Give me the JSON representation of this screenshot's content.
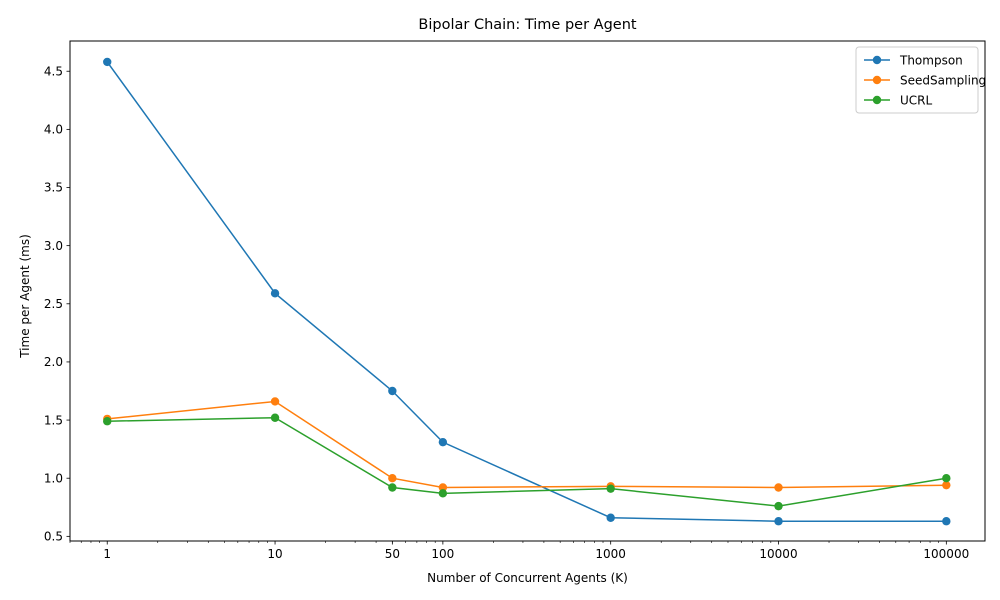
{
  "chart_data": {
    "type": "line",
    "title": "Bipolar Chain: Time per Agent",
    "xlabel": "Number of Concurrent Agents (K)",
    "ylabel": "Time per Agent (ms)",
    "xscale": "log",
    "x": [
      1,
      10,
      50,
      100,
      1000,
      10000,
      100000
    ],
    "xtick_values": [
      1,
      10,
      50,
      100,
      1000,
      10000,
      100000
    ],
    "xtick_labels": [
      "1",
      "10",
      "50",
      "100",
      "1000",
      "10000",
      "100000"
    ],
    "xlim": [
      0.6,
      170000
    ],
    "ylim": [
      0.46,
      4.76
    ],
    "ytick_values": [
      0.5,
      1.0,
      1.5,
      2.0,
      2.5,
      3.0,
      3.5,
      4.0,
      4.5
    ],
    "ytick_labels": [
      "0.5",
      "1.0",
      "1.5",
      "2.0",
      "2.5",
      "3.0",
      "3.5",
      "4.0",
      "4.5"
    ],
    "grid": false,
    "legend_position": "top-right",
    "series": [
      {
        "name": "Thompson",
        "color": "#1f77b4",
        "values": [
          4.58,
          2.59,
          1.75,
          1.31,
          0.66,
          0.63,
          0.63
        ]
      },
      {
        "name": "SeedSampling",
        "color": "#ff7f0e",
        "values": [
          1.51,
          1.66,
          1.0,
          0.92,
          0.93,
          0.92,
          0.94
        ]
      },
      {
        "name": "UCRL",
        "color": "#2ca02c",
        "values": [
          1.49,
          1.52,
          0.92,
          0.87,
          0.91,
          0.76,
          1.0
        ]
      }
    ]
  }
}
